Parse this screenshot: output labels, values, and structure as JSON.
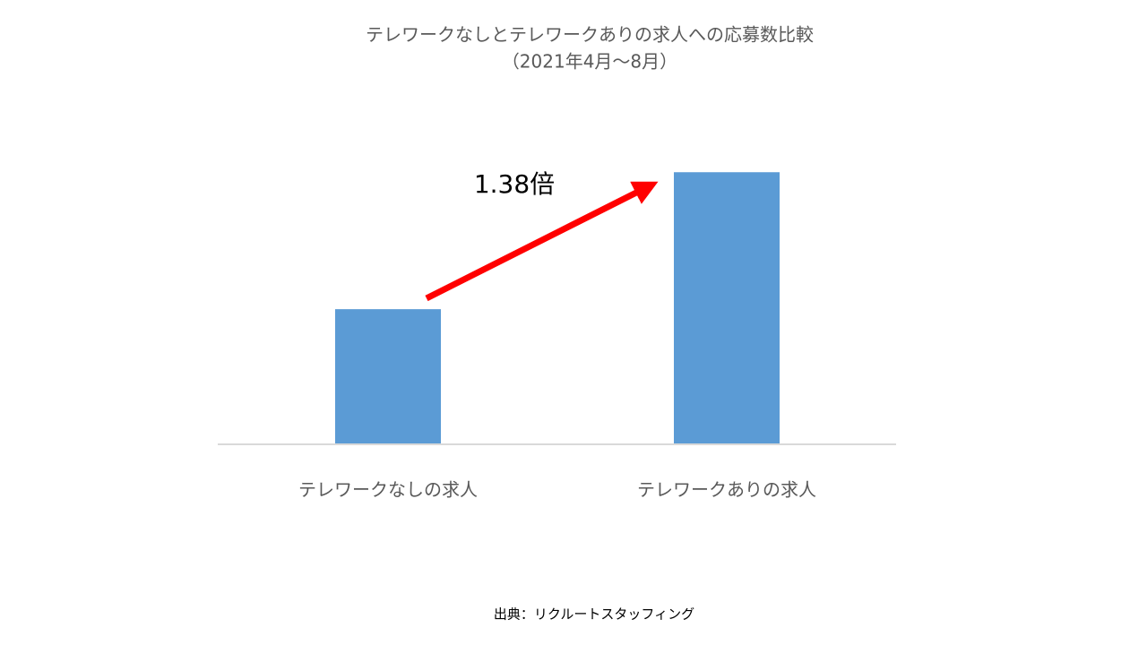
{
  "chart_data": {
    "type": "bar",
    "title": "テレワークなしとテレワークありの求人への応募数比較",
    "subtitle": "（2021年4月～8月）",
    "categories": [
      "テレワークなしの求人",
      "テレワークありの求人"
    ],
    "values": [
      100,
      138
    ],
    "color": "#5b9bd5",
    "ylim": [
      62.5,
      148.5
    ],
    "annotation": "1.38倍",
    "source": "出典：リクルートスタッフィング"
  }
}
